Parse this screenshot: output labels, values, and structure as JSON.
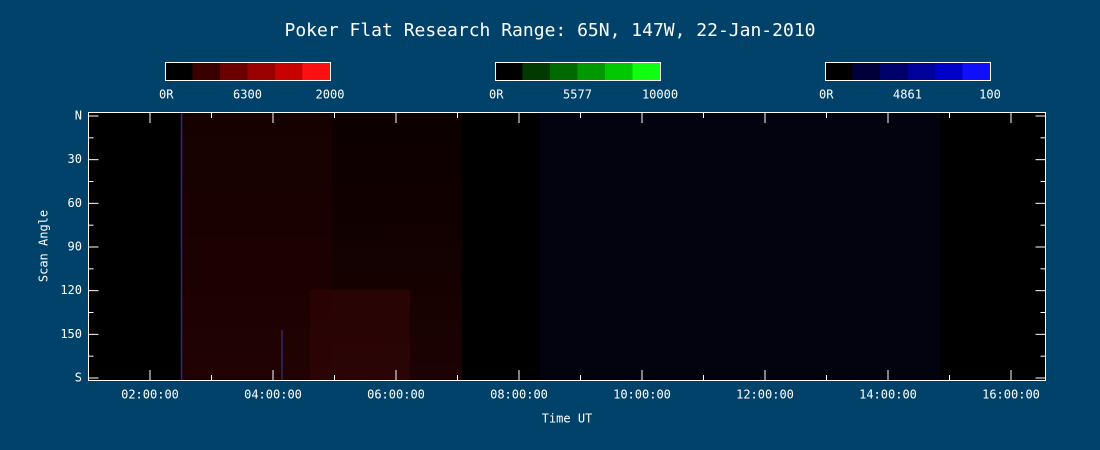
{
  "title": "Poker Flat Research Range: 65N, 147W, 22-Jan-2010",
  "colorbars": [
    {
      "labels": [
        "0R",
        "6300",
        "2000"
      ]
    },
    {
      "labels": [
        "0R",
        "5577",
        "10000"
      ]
    },
    {
      "labels": [
        "0R",
        "4861",
        "100"
      ]
    }
  ],
  "y_axis": {
    "label": "Scan Angle",
    "ticks": [
      "N",
      "30",
      "60",
      "90",
      "120",
      "150",
      "S"
    ]
  },
  "x_axis": {
    "label": "Time UT",
    "ticks": [
      "02:00:00",
      "04:00:00",
      "06:00:00",
      "08:00:00",
      "10:00:00",
      "12:00:00",
      "14:00:00",
      "16:00:00"
    ]
  }
}
